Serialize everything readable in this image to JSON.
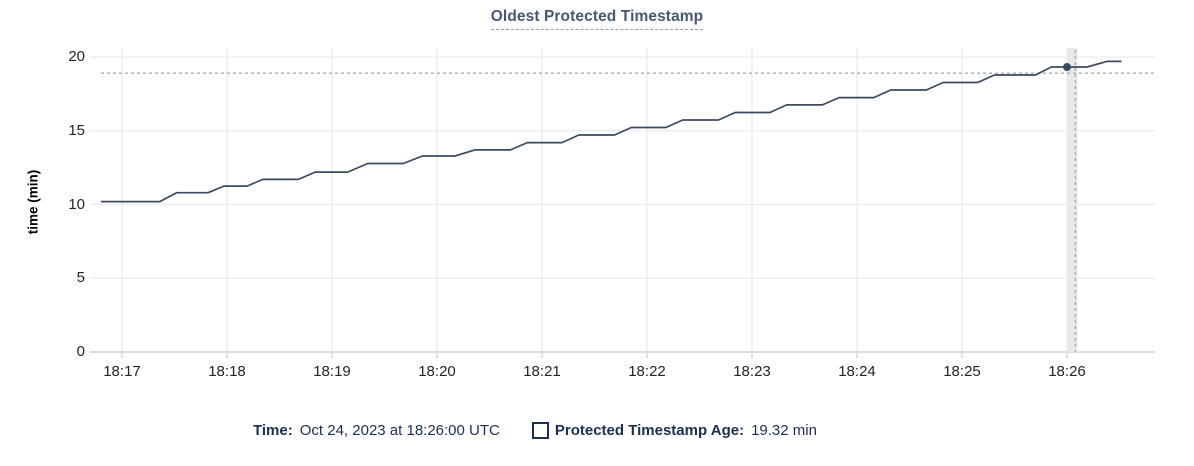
{
  "title": "Oldest Protected Timestamp",
  "chart_data": {
    "type": "line",
    "title": "Oldest Protected Timestamp",
    "xlabel": "",
    "ylabel": "time (min)",
    "ylim": [
      0,
      20
    ],
    "yticks": [
      0,
      5,
      10,
      15,
      20
    ],
    "xticks": [
      {
        "t": 17,
        "label": "18:17"
      },
      {
        "t": 18,
        "label": "18:18"
      },
      {
        "t": 19,
        "label": "18:19"
      },
      {
        "t": 20,
        "label": "18:20"
      },
      {
        "t": 21,
        "label": "18:21"
      },
      {
        "t": 22,
        "label": "18:22"
      },
      {
        "t": 23,
        "label": "18:23"
      },
      {
        "t": 24,
        "label": "18:24"
      },
      {
        "t": 25,
        "label": "18:25"
      },
      {
        "t": 26,
        "label": "18:26"
      }
    ],
    "grid": true,
    "series": [
      {
        "name": "Protected Timestamp Age",
        "points": [
          [
            16.8,
            10.2
          ],
          [
            17.36,
            10.2
          ],
          [
            17.52,
            10.8
          ],
          [
            17.82,
            10.8
          ],
          [
            17.97,
            11.25
          ],
          [
            18.19,
            11.25
          ],
          [
            18.34,
            11.7
          ],
          [
            18.68,
            11.7
          ],
          [
            18.84,
            12.2
          ],
          [
            19.15,
            12.2
          ],
          [
            19.34,
            12.78
          ],
          [
            19.68,
            12.78
          ],
          [
            19.86,
            13.29
          ],
          [
            20.17,
            13.29
          ],
          [
            20.36,
            13.7
          ],
          [
            20.7,
            13.7
          ],
          [
            20.86,
            14.2
          ],
          [
            21.19,
            14.2
          ],
          [
            21.35,
            14.71
          ],
          [
            21.69,
            14.71
          ],
          [
            21.85,
            15.22
          ],
          [
            22.18,
            15.22
          ],
          [
            22.34,
            15.73
          ],
          [
            22.68,
            15.73
          ],
          [
            22.84,
            16.24
          ],
          [
            23.17,
            16.24
          ],
          [
            23.33,
            16.75
          ],
          [
            23.67,
            16.75
          ],
          [
            23.83,
            17.25
          ],
          [
            24.16,
            17.25
          ],
          [
            24.32,
            17.76
          ],
          [
            24.66,
            17.76
          ],
          [
            24.82,
            18.27
          ],
          [
            25.15,
            18.27
          ],
          [
            25.31,
            18.78
          ],
          [
            25.7,
            18.78
          ],
          [
            25.85,
            19.32
          ],
          [
            26.19,
            19.32
          ],
          [
            26.38,
            19.7
          ],
          [
            26.52,
            19.7
          ]
        ]
      }
    ],
    "highlight_point": {
      "t": 26.0,
      "v": 19.32
    },
    "crosshair": {
      "t": 26.08,
      "v": 18.9
    }
  },
  "hover_legend": {
    "time_key": "Time:",
    "time_value": "Oct 24, 2023 at 18:26:00 UTC",
    "series_key": "Protected Timestamp Age:",
    "series_value": "19.32 min"
  },
  "colors": {
    "line": "#3b4a63",
    "dot": "#3b4a63",
    "grid": "#ececec",
    "axis": "#d4d4d4",
    "crosshair": "#9eb2ba",
    "hover_band": "#e9e9e9",
    "title_text": "#475872",
    "tick_text": "#242424",
    "legend_text": "#1b2f52"
  }
}
